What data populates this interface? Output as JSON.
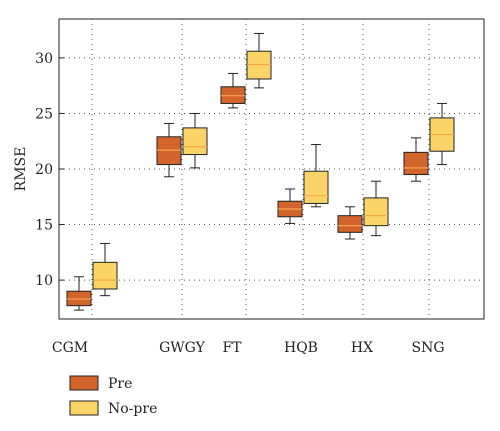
{
  "chart_data": {
    "type": "boxplot",
    "title": "",
    "xlabel": "",
    "ylabel": "RMSE",
    "ylim": [
      6.5,
      33.5
    ],
    "yticks": [
      10,
      15,
      20,
      25,
      30
    ],
    "grid": true,
    "legend_position": "bottom-left",
    "categories": [
      "CGM",
      "GWGY",
      "FT",
      "HQB",
      "HX",
      "SNG"
    ],
    "series": [
      {
        "name": "Pre",
        "color": "#d2642c",
        "median_color": "#f6a44e",
        "boxes": [
          {
            "min": 7.3,
            "q1": 7.7,
            "median": 8.3,
            "q3": 9.0,
            "max": 10.3
          },
          {
            "min": 19.3,
            "q1": 20.4,
            "median": 21.7,
            "q3": 22.9,
            "max": 24.1
          },
          {
            "min": 25.5,
            "q1": 25.9,
            "median": 26.6,
            "q3": 27.4,
            "max": 28.6
          },
          {
            "min": 15.1,
            "q1": 15.7,
            "median": 16.4,
            "q3": 17.1,
            "max": 18.2
          },
          {
            "min": 13.7,
            "q1": 14.3,
            "median": 14.9,
            "q3": 15.8,
            "max": 16.6
          },
          {
            "min": 18.9,
            "q1": 19.5,
            "median": 20.1,
            "q3": 21.5,
            "max": 22.8
          }
        ]
      },
      {
        "name": "No-pre",
        "color": "#fbd468",
        "median_color": "#f3a940",
        "boxes": [
          {
            "min": 8.6,
            "q1": 9.2,
            "median": 10.0,
            "q3": 11.6,
            "max": 13.3
          },
          {
            "min": 20.1,
            "q1": 21.3,
            "median": 22.0,
            "q3": 23.7,
            "max": 25.0
          },
          {
            "min": 27.3,
            "q1": 28.1,
            "median": 29.4,
            "q3": 30.6,
            "max": 32.2
          },
          {
            "min": 16.6,
            "q1": 16.9,
            "median": 17.6,
            "q3": 19.8,
            "max": 22.2
          },
          {
            "min": 14.0,
            "q1": 14.9,
            "median": 15.8,
            "q3": 17.4,
            "max": 18.9
          },
          {
            "min": 20.4,
            "q1": 21.6,
            "median": 23.1,
            "q3": 24.6,
            "max": 25.9
          }
        ]
      }
    ]
  }
}
